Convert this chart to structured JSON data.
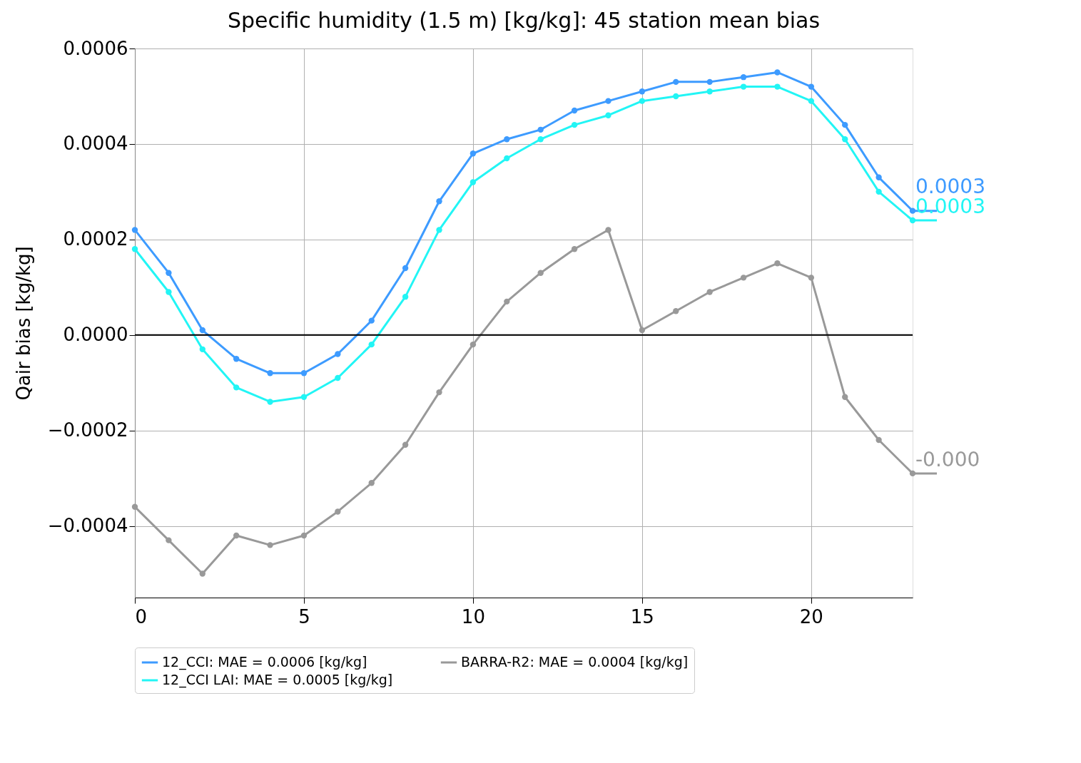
{
  "chart_data": {
    "type": "line",
    "title": "Specific humidity (1.5 m) [kg/kg]: 45 station mean bias",
    "ylabel": "Qair bias [kg/kg]",
    "x": [
      0,
      1,
      2,
      3,
      4,
      5,
      6,
      7,
      8,
      9,
      10,
      11,
      12,
      13,
      14,
      15,
      16,
      17,
      18,
      19,
      20,
      21,
      22,
      23
    ],
    "series": [
      {
        "name": "12_CCI: MAE = 0.0006 [kg/kg]",
        "color": "#3d9bff",
        "values": [
          0.00022,
          0.00013,
          1e-05,
          -5e-05,
          -8e-05,
          -8e-05,
          -4e-05,
          3e-05,
          0.00014,
          0.00028,
          0.00038,
          0.00041,
          0.00043,
          0.00047,
          0.00049,
          0.00051,
          0.00053,
          0.00053,
          0.00054,
          0.00055,
          0.00052,
          0.00044,
          0.00033,
          0.00026
        ]
      },
      {
        "name": "12_CCI LAI: MAE = 0.0005 [kg/kg]",
        "color": "#22f5f5",
        "values": [
          0.00018,
          9e-05,
          -3e-05,
          -0.00011,
          -0.00014,
          -0.00013,
          -9e-05,
          -2e-05,
          8e-05,
          0.00022,
          0.00032,
          0.00037,
          0.00041,
          0.00044,
          0.00046,
          0.00049,
          0.0005,
          0.00051,
          0.00052,
          0.00052,
          0.00049,
          0.00041,
          0.0003,
          0.00024
        ]
      },
      {
        "name": "BARRA-R2: MAE = 0.0004 [kg/kg]",
        "color": "#999999",
        "values": [
          -0.00036,
          -0.00043,
          -0.0005,
          -0.00042,
          -0.00044,
          -0.00042,
          -0.00037,
          -0.00031,
          -0.00023,
          -0.00012,
          -2e-05,
          7e-05,
          0.00013,
          0.00018,
          0.00022,
          1e-05,
          5e-05,
          9e-05,
          0.00012,
          0.00015,
          0.00012,
          -0.00013,
          -0.00022,
          -0.00029
        ]
      }
    ],
    "xlim": [
      0,
      23
    ],
    "xticks": [
      0,
      5,
      10,
      15,
      20
    ],
    "ylim": [
      -0.00055,
      0.0006
    ],
    "yticks": [
      -0.0004,
      -0.0002,
      {
        "value": 0,
        "label": "0.0000"
      },
      0.0002,
      0.0004,
      0.0006
    ],
    "ref_lines": [
      {
        "axis": "y",
        "value": 0,
        "color": "#000000"
      }
    ],
    "annotations": [
      "0.0003",
      "0.0003",
      "-0.000"
    ],
    "grid": true,
    "legend": "bottom",
    "marker": "circle",
    "line_style": "solid"
  }
}
